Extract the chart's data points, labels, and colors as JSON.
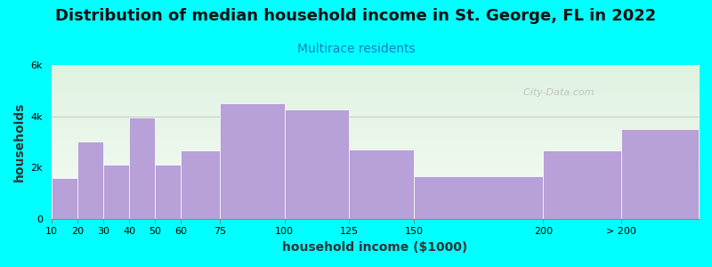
{
  "title": "Distribution of median household income in St. George, FL in 2022",
  "subtitle": "Multirace residents",
  "xlabel": "household income ($1000)",
  "ylabel": "households",
  "bg_color": "#00FFFF",
  "bar_color": "#b8a0d8",
  "values": [
    1600,
    3000,
    2100,
    3950,
    2100,
    2650,
    4500,
    4250,
    2700,
    1650,
    2650,
    3500
  ],
  "bin_edges": [
    10,
    20,
    30,
    40,
    50,
    60,
    75,
    100,
    125,
    150,
    200,
    230,
    260
  ],
  "xtick_positions": [
    10,
    20,
    30,
    40,
    50,
    60,
    75,
    100,
    125,
    150,
    200,
    230
  ],
  "xtick_labels": [
    "10",
    "20",
    "30",
    "40",
    "50",
    "60",
    "75",
    "100",
    "125",
    "150",
    "200",
    "> 200"
  ],
  "ylim": [
    0,
    6000
  ],
  "yticks": [
    0,
    2000,
    4000,
    6000
  ],
  "ytick_labels": [
    "0",
    "2k",
    "4k",
    "6k"
  ],
  "title_fontsize": 13,
  "subtitle_fontsize": 10,
  "axis_label_fontsize": 10,
  "tick_fontsize": 8,
  "watermark_text": "  City-Data.com",
  "plot_bg_top_color": "#e8f5e9",
  "plot_bg_bottom_color": "#f8fff8"
}
